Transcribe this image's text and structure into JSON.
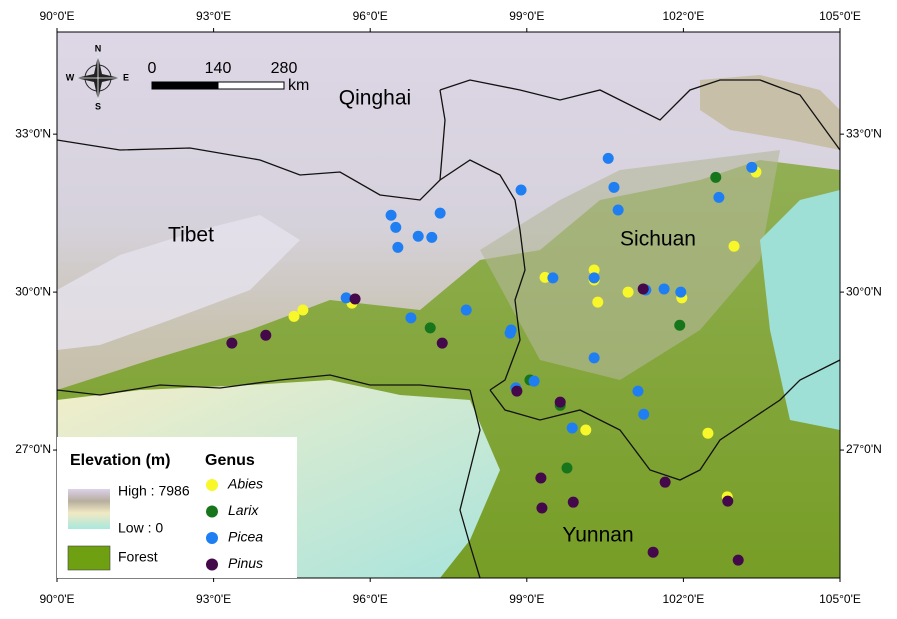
{
  "chart_data": {
    "type": "scatter",
    "annotations": [
      "Qinghai",
      "Tibet",
      "Sichuan",
      "Yunnan"
    ],
    "xlim": [
      90,
      105
    ],
    "ylim": [
      24.57,
      34.94
    ],
    "xticks": [
      {
        "value": 90,
        "label": "90°0'E"
      },
      {
        "value": 93,
        "label": "93°0'E"
      },
      {
        "value": 96,
        "label": "96°0'E"
      },
      {
        "value": 99,
        "label": "99°0'E"
      },
      {
        "value": 102,
        "label": "102°0'E"
      },
      {
        "value": 105,
        "label": "105°0'E"
      }
    ],
    "yticks": [
      {
        "value": 27,
        "label": "27°0'N"
      },
      {
        "value": 30,
        "label": "30°0'N"
      },
      {
        "value": 33,
        "label": "33°0'N"
      }
    ],
    "legend_title": "Genus",
    "series": [
      {
        "name": "Abies",
        "color": "#f7f72a",
        "x": [
          94.54,
          94.71,
          95.65,
          99.35,
          100.29,
          100.29,
          100.36,
          100.94,
          101.97,
          102.97,
          103.39,
          100.13,
          102.47,
          102.84
        ],
        "values": [
          29.54,
          29.66,
          29.79,
          30.28,
          30.42,
          30.23,
          29.81,
          30.0,
          29.89,
          30.87,
          32.28,
          27.38,
          27.32,
          26.11
        ]
      },
      {
        "name": "Larix",
        "color": "#17761c",
        "x": [
          102.62,
          97.15,
          101.93,
          99.06,
          99.64,
          99.77
        ],
        "values": [
          32.18,
          29.32,
          29.37,
          28.33,
          27.85,
          26.66
        ]
      },
      {
        "name": "Picea",
        "color": "#1f7ff2",
        "x": [
          100.56,
          98.89,
          100.67,
          103.31,
          102.68,
          100.75,
          96.4,
          97.34,
          96.49,
          96.53,
          96.92,
          97.18,
          99.5,
          100.29,
          101.28,
          101.63,
          101.95,
          97.84,
          95.54,
          96.78,
          98.7,
          98.68,
          99.14,
          98.79,
          100.29,
          101.13,
          101.24,
          99.87
        ],
        "values": [
          32.54,
          31.94,
          31.99,
          32.37,
          31.8,
          31.56,
          31.46,
          31.5,
          31.23,
          30.85,
          31.06,
          31.04,
          30.27,
          30.27,
          30.04,
          30.06,
          30.0,
          29.66,
          29.89,
          29.51,
          29.28,
          29.22,
          28.31,
          28.18,
          28.75,
          28.12,
          27.68,
          27.42
        ]
      },
      {
        "name": "Pinus",
        "color": "#44094a",
        "x": [
          93.35,
          94.0,
          95.71,
          97.38,
          101.23,
          98.81,
          99.64,
          99.27,
          99.89,
          99.29,
          101.65,
          102.85,
          101.42,
          103.05
        ],
        "values": [
          29.03,
          29.18,
          29.87,
          29.03,
          30.06,
          28.12,
          27.91,
          26.47,
          26.01,
          25.9,
          26.39,
          26.03,
          25.06,
          24.91
        ]
      }
    ],
    "elevation_legend": {
      "title": "Elevation (m)",
      "high": "High : 7986",
      "low": "Low : 0",
      "forest": "Forest"
    },
    "scale_bar": {
      "ticks": [
        0,
        140,
        280
      ],
      "unit": "km"
    },
    "compass": {
      "n": "N",
      "e": "E",
      "s": "S",
      "w": "W"
    }
  }
}
